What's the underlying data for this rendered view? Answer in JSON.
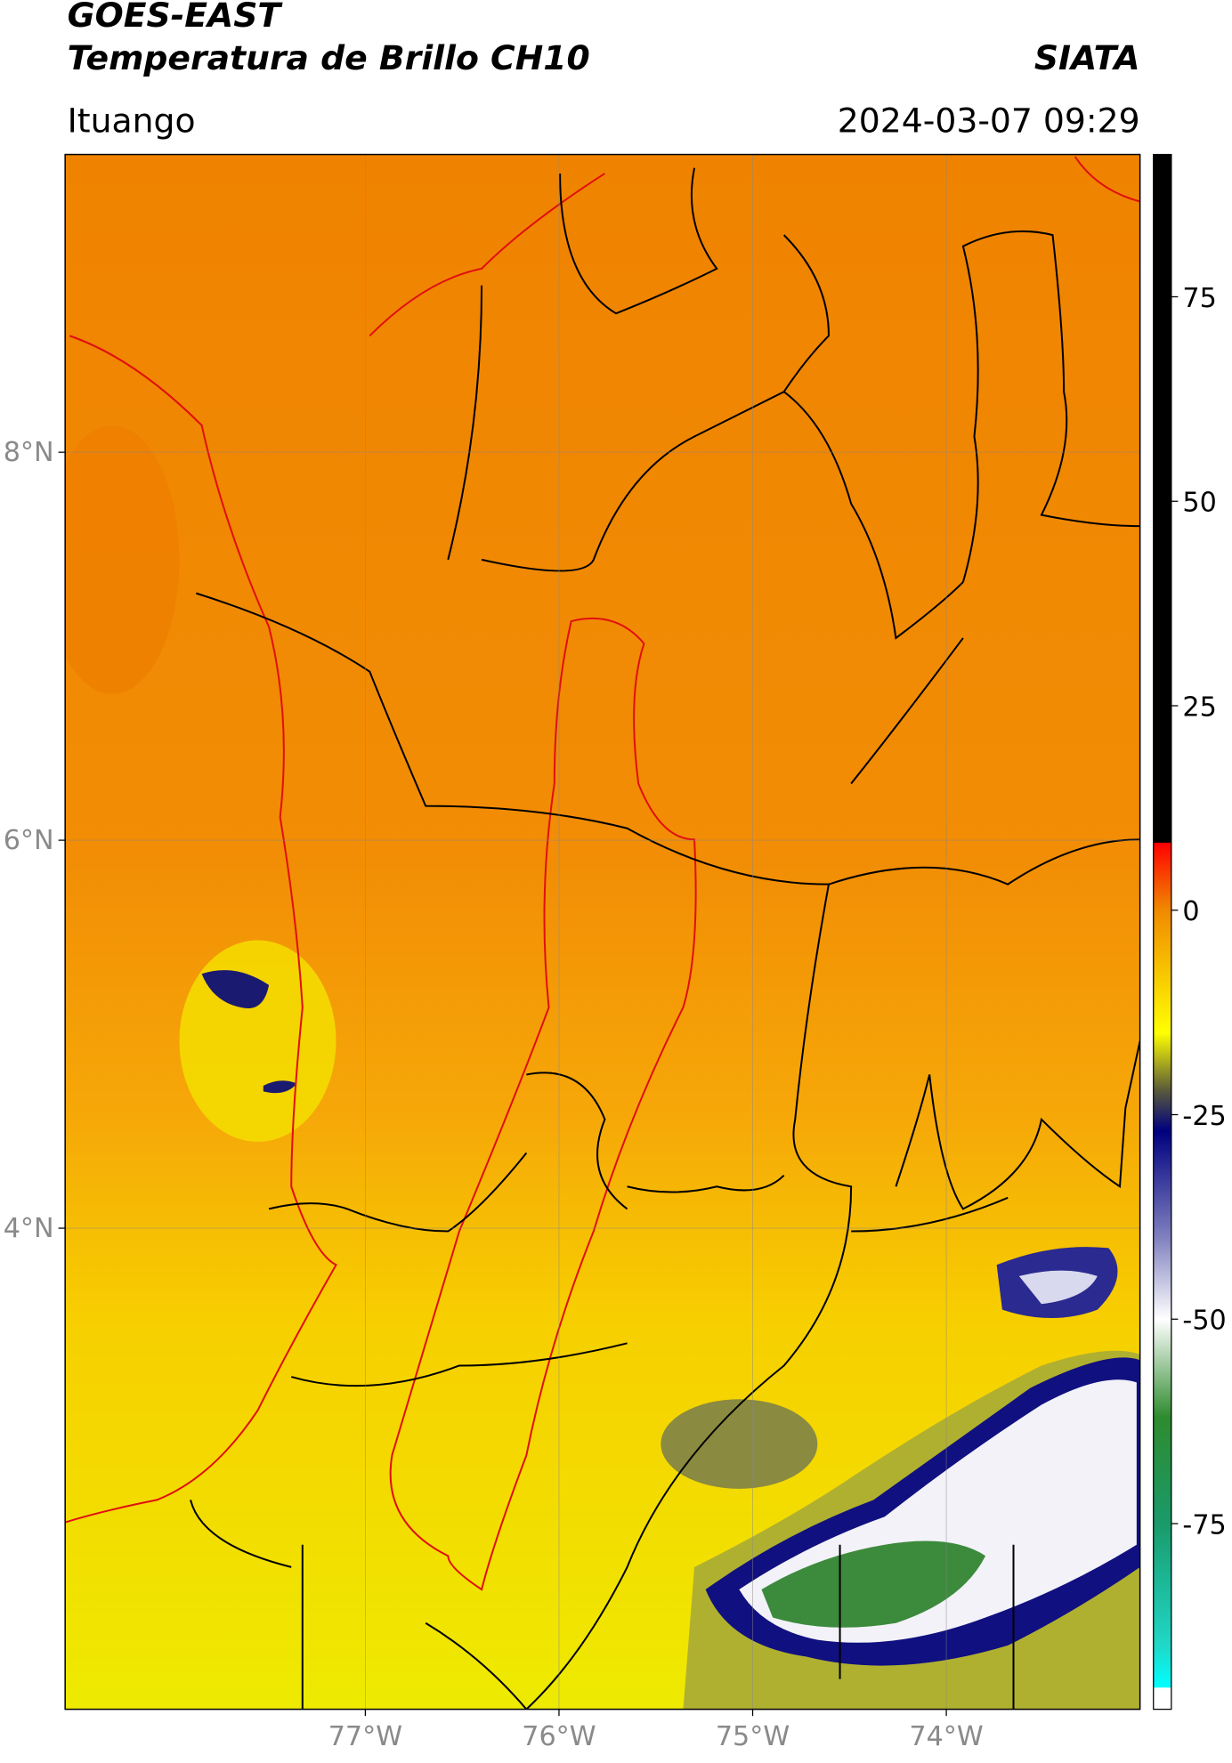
{
  "header": {
    "title": "GOES-EAST",
    "subtitle": "Temperatura de Brillo CH10",
    "region": "Ituango",
    "brand": "SIATA",
    "timestamp": "2024-03-07 09:29"
  },
  "map": {
    "xlim": [
      -78.55,
      -73.0
    ],
    "ylim": [
      1.52,
      9.535
    ],
    "xticks": [
      {
        "value": -77,
        "label": "77°W"
      },
      {
        "value": -76,
        "label": "76°W"
      },
      {
        "value": -75,
        "label": "75°W"
      },
      {
        "value": -74,
        "label": "74°W"
      }
    ],
    "yticks": [
      {
        "value": 8,
        "label": "8°N"
      },
      {
        "value": 6,
        "label": "6°N"
      },
      {
        "value": 4,
        "label": "4°N"
      }
    ],
    "grid": true
  },
  "colorbar": {
    "lim": [
      -97.7,
      92.4
    ],
    "ticks": [
      75,
      50,
      25,
      0,
      -25,
      -50,
      -75
    ],
    "stops": [
      {
        "value": 92.4,
        "color": "#000000"
      },
      {
        "value": 8.3,
        "color": "#000000"
      },
      {
        "value": 8.2,
        "color": "#ff0000"
      },
      {
        "value": 0,
        "color": "#f08a00"
      },
      {
        "value": -15,
        "color": "#ffff00"
      },
      {
        "value": -22,
        "color": "#5a5a3a"
      },
      {
        "value": -27,
        "color": "#000080"
      },
      {
        "value": -40,
        "color": "#8080c0"
      },
      {
        "value": -50,
        "color": "#ffffff"
      },
      {
        "value": -62,
        "color": "#2e8b2e"
      },
      {
        "value": -75,
        "color": "#1a9a6a"
      },
      {
        "value": -90,
        "color": "#20d8c8"
      },
      {
        "value": -95,
        "color": "#00ffff"
      },
      {
        "value": -95.1,
        "color": "#ffffff"
      },
      {
        "value": -97.7,
        "color": "#ffffff"
      }
    ]
  }
}
